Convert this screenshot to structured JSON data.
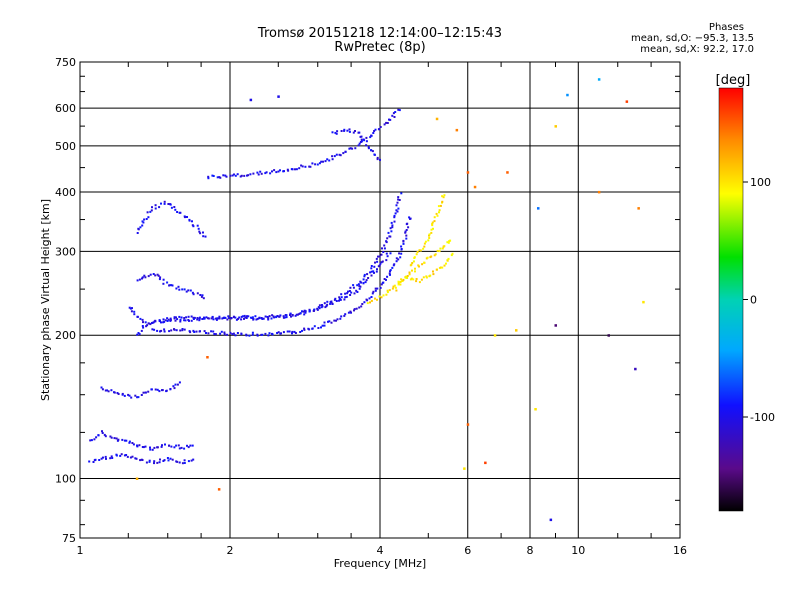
{
  "chart_data": {
    "type": "scatter",
    "title": "Tromsø 20151218 12:14:00–12:15:43",
    "subtitle": "RwPretec (8p)",
    "xlabel": "Frequency [MHz]",
    "ylabel": "Stationary phase Virtual Height [km]",
    "x_scale": "log",
    "y_scale": "log",
    "xlim": [
      1,
      16
    ],
    "ylim": [
      75,
      750
    ],
    "x_ticks": [
      1,
      2,
      4,
      6,
      8,
      10,
      16
    ],
    "x_grid_lines": [
      2,
      4,
      6,
      8,
      10
    ],
    "y_ticks": [
      75,
      100,
      200,
      300,
      400,
      500,
      600,
      750
    ],
    "y_grid_lines": [
      100,
      200,
      300,
      400,
      500,
      600
    ],
    "grid": true,
    "colorbar": {
      "label": "[deg]",
      "range": [
        -180,
        180
      ],
      "ticks": [
        100,
        0,
        -100
      ]
    },
    "stats_panel": {
      "heading": "Phases",
      "line_o": "mean, sd,O: −95.3, 13.5",
      "line_x": "mean, sd,X:  92.2, 17.0"
    },
    "traces": [
      {
        "name": "",
        "phase": -100,
        "points": [
          [
            1.3,
            200
          ],
          [
            1.35,
            210
          ],
          [
            1.45,
            215
          ],
          [
            1.6,
            218
          ],
          [
            1.8,
            218
          ],
          [
            2.0,
            218
          ],
          [
            2.3,
            218
          ],
          [
            2.6,
            220
          ],
          [
            2.9,
            225
          ],
          [
            3.1,
            232
          ],
          [
            3.3,
            240
          ],
          [
            3.5,
            250
          ],
          [
            3.7,
            262
          ],
          [
            3.9,
            280
          ],
          [
            4.05,
            300
          ],
          [
            4.2,
            330
          ],
          [
            4.3,
            360
          ],
          [
            4.4,
            400
          ]
        ]
      },
      {
        "name": "",
        "phase": -100,
        "points": [
          [
            1.4,
            205
          ],
          [
            1.55,
            205
          ],
          [
            1.7,
            204
          ],
          [
            1.9,
            202
          ],
          [
            2.1,
            201
          ],
          [
            2.4,
            201
          ],
          [
            2.7,
            203
          ],
          [
            3.0,
            208
          ],
          [
            3.3,
            216
          ],
          [
            3.6,
            228
          ],
          [
            3.9,
            245
          ],
          [
            4.15,
            265
          ],
          [
            4.35,
            290
          ],
          [
            4.5,
            320
          ],
          [
            4.6,
            360
          ]
        ]
      },
      {
        "name": "",
        "phase": -100,
        "points": [
          [
            1.25,
            230
          ],
          [
            1.3,
            220
          ],
          [
            1.35,
            212
          ],
          [
            1.5,
            214
          ],
          [
            1.7,
            216
          ],
          [
            2.0,
            217
          ],
          [
            2.4,
            217
          ],
          [
            2.8,
            222
          ],
          [
            3.2,
            232
          ],
          [
            3.6,
            248
          ],
          [
            3.95,
            275
          ],
          [
            4.2,
            300
          ]
        ]
      },
      {
        "name": "",
        "phase": -100,
        "points": [
          [
            1.8,
            430
          ],
          [
            2.0,
            432
          ],
          [
            2.3,
            438
          ],
          [
            2.6,
            445
          ],
          [
            2.9,
            455
          ],
          [
            3.2,
            470
          ],
          [
            3.4,
            485
          ],
          [
            3.6,
            500
          ],
          [
            3.8,
            520
          ],
          [
            4.0,
            545
          ],
          [
            4.2,
            570
          ],
          [
            4.4,
            600
          ]
        ]
      },
      {
        "name": "",
        "phase": -100,
        "points": [
          [
            3.2,
            530
          ],
          [
            3.4,
            540
          ],
          [
            3.6,
            535
          ],
          [
            3.8,
            500
          ],
          [
            3.9,
            480
          ],
          [
            4.0,
            460
          ]
        ]
      },
      {
        "name": "",
        "phase": -100,
        "points": [
          [
            1.05,
            120
          ],
          [
            1.1,
            125
          ],
          [
            1.2,
            120
          ],
          [
            1.3,
            118
          ],
          [
            1.4,
            115
          ],
          [
            1.5,
            118
          ],
          [
            1.6,
            116
          ],
          [
            1.7,
            118
          ]
        ]
      },
      {
        "name": "",
        "phase": -100,
        "points": [
          [
            1.05,
            108
          ],
          [
            1.1,
            110
          ],
          [
            1.2,
            112
          ],
          [
            1.3,
            110
          ],
          [
            1.4,
            108
          ],
          [
            1.5,
            110
          ],
          [
            1.6,
            108
          ],
          [
            1.7,
            110
          ]
        ]
      },
      {
        "name": "",
        "phase": -100,
        "points": [
          [
            1.1,
            155
          ],
          [
            1.2,
            150
          ],
          [
            1.3,
            148
          ],
          [
            1.4,
            155
          ],
          [
            1.5,
            152
          ],
          [
            1.6,
            160
          ]
        ]
      },
      {
        "name": "",
        "phase": -100,
        "points": [
          [
            1.3,
            330
          ],
          [
            1.35,
            350
          ],
          [
            1.4,
            370
          ],
          [
            1.5,
            380
          ],
          [
            1.6,
            360
          ],
          [
            1.7,
            340
          ],
          [
            1.8,
            320
          ]
        ]
      },
      {
        "name": "",
        "phase": -100,
        "points": [
          [
            1.3,
            260
          ],
          [
            1.4,
            270
          ],
          [
            1.5,
            255
          ],
          [
            1.6,
            250
          ],
          [
            1.7,
            245
          ],
          [
            1.8,
            240
          ]
        ]
      },
      {
        "name": "",
        "phase": 100,
        "points": [
          [
            3.8,
            235
          ],
          [
            4.0,
            240
          ],
          [
            4.2,
            250
          ],
          [
            4.4,
            260
          ],
          [
            4.6,
            270
          ],
          [
            4.8,
            280
          ],
          [
            5.0,
            290
          ],
          [
            5.2,
            300
          ],
          [
            5.4,
            310
          ],
          [
            5.6,
            320
          ]
        ]
      },
      {
        "name": "",
        "phase": 100,
        "points": [
          [
            4.6,
            280
          ],
          [
            4.8,
            300
          ],
          [
            5.0,
            320
          ],
          [
            5.1,
            340
          ],
          [
            5.2,
            360
          ],
          [
            5.3,
            380
          ],
          [
            5.4,
            400
          ]
        ]
      },
      {
        "name": "",
        "phase": 100,
        "points": [
          [
            4.3,
            250
          ],
          [
            4.5,
            265
          ],
          [
            4.8,
            260
          ],
          [
            5.1,
            270
          ],
          [
            5.4,
            280
          ],
          [
            5.6,
            300
          ]
        ]
      }
    ],
    "scattered_points": [
      {
        "x": 2.2,
        "y": 625,
        "phase": -100
      },
      {
        "x": 2.5,
        "y": 635,
        "phase": -100
      },
      {
        "x": 5.9,
        "y": 105,
        "phase": 100
      },
      {
        "x": 6.0,
        "y": 130,
        "phase": 150
      },
      {
        "x": 6.5,
        "y": 108,
        "phase": 160
      },
      {
        "x": 6.8,
        "y": 200,
        "phase": 100
      },
      {
        "x": 7.5,
        "y": 205,
        "phase": 110
      },
      {
        "x": 8.2,
        "y": 140,
        "phase": 100
      },
      {
        "x": 8.3,
        "y": 370,
        "phase": -60
      },
      {
        "x": 8.8,
        "y": 82,
        "phase": -100
      },
      {
        "x": 9.0,
        "y": 210,
        "phase": -150
      },
      {
        "x": 9.0,
        "y": 550,
        "phase": 110
      },
      {
        "x": 9.5,
        "y": 640,
        "phase": -50
      },
      {
        "x": 11.0,
        "y": 400,
        "phase": 140
      },
      {
        "x": 11.0,
        "y": 690,
        "phase": -40
      },
      {
        "x": 11.5,
        "y": 200,
        "phase": -160
      },
      {
        "x": 12.5,
        "y": 620,
        "phase": 160
      },
      {
        "x": 13.0,
        "y": 170,
        "phase": -120
      },
      {
        "x": 13.2,
        "y": 370,
        "phase": 140
      },
      {
        "x": 13.5,
        "y": 235,
        "phase": 100
      },
      {
        "x": 6.0,
        "y": 440,
        "phase": 150
      },
      {
        "x": 6.2,
        "y": 410,
        "phase": 140
      },
      {
        "x": 7.2,
        "y": 440,
        "phase": 150
      },
      {
        "x": 5.7,
        "y": 540,
        "phase": 140
      },
      {
        "x": 5.2,
        "y": 570,
        "phase": 120
      },
      {
        "x": 1.3,
        "y": 100,
        "phase": 120
      },
      {
        "x": 1.9,
        "y": 95,
        "phase": 150
      },
      {
        "x": 1.8,
        "y": 180,
        "phase": 150
      }
    ]
  }
}
